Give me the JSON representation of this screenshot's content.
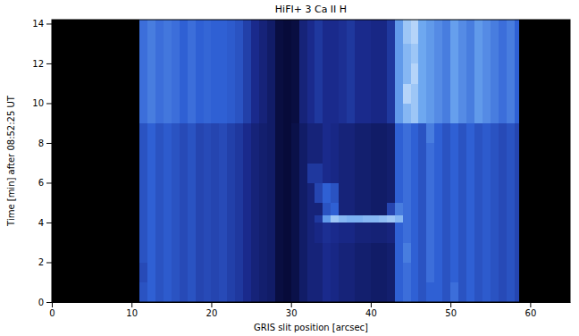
{
  "chart_data": {
    "type": "heatmap",
    "title": "HiFI+ 3 Ca II H",
    "x_label": "GRIS slit position [arcsec]",
    "y_label": "Time [min] after 08:52:25 UT",
    "xlim": [
      0,
      65
    ],
    "ylim": [
      0,
      14.2
    ],
    "xticks": [
      0,
      10,
      20,
      30,
      40,
      50,
      60
    ],
    "yticks": [
      0,
      2,
      4,
      6,
      8,
      10,
      12,
      14
    ],
    "zlim": [
      0,
      1
    ],
    "x_edges": [
      11,
      12,
      13,
      14,
      15,
      16,
      17,
      18,
      19,
      20,
      21,
      22,
      23,
      24,
      25,
      26,
      27,
      28,
      29,
      30,
      31,
      32,
      33,
      34,
      35,
      36,
      37,
      38,
      39,
      40,
      41,
      42,
      43,
      44,
      45,
      46,
      47,
      48,
      49,
      50,
      51,
      52,
      53,
      54,
      55,
      56,
      57,
      58,
      58.5
    ],
    "y_edges": [
      0,
      1,
      2,
      3,
      4,
      4.4,
      5,
      6,
      7,
      8,
      9,
      10,
      11,
      12,
      13,
      14.2
    ],
    "cells": [
      [
        0.45,
        0.5,
        0.45,
        0.48,
        0.45,
        0.42,
        0.45,
        0.4,
        0.42,
        0.4,
        0.42,
        0.38,
        0.35,
        0.3,
        0.25,
        0.22,
        0.2,
        0.1,
        0.08,
        0.12,
        0.2,
        0.25,
        0.25,
        0.3,
        0.28,
        0.25,
        0.25,
        0.22,
        0.22,
        0.2,
        0.2,
        0.22,
        0.5,
        0.55,
        0.5,
        0.45,
        0.5,
        0.5,
        0.45,
        0.55,
        0.45,
        0.5,
        0.45,
        0.48,
        0.45,
        0.42,
        0.45,
        0.4
      ],
      [
        0.42,
        0.5,
        0.45,
        0.48,
        0.45,
        0.42,
        0.45,
        0.4,
        0.42,
        0.4,
        0.42,
        0.38,
        0.35,
        0.3,
        0.25,
        0.22,
        0.2,
        0.1,
        0.08,
        0.12,
        0.2,
        0.25,
        0.25,
        0.3,
        0.28,
        0.25,
        0.25,
        0.22,
        0.22,
        0.2,
        0.2,
        0.22,
        0.5,
        0.55,
        0.5,
        0.45,
        0.55,
        0.5,
        0.45,
        0.5,
        0.45,
        0.5,
        0.45,
        0.48,
        0.45,
        0.42,
        0.45,
        0.4
      ],
      [
        0.45,
        0.5,
        0.45,
        0.48,
        0.45,
        0.42,
        0.45,
        0.4,
        0.42,
        0.4,
        0.42,
        0.38,
        0.35,
        0.3,
        0.25,
        0.22,
        0.2,
        0.1,
        0.08,
        0.12,
        0.2,
        0.25,
        0.25,
        0.3,
        0.28,
        0.25,
        0.25,
        0.22,
        0.22,
        0.2,
        0.2,
        0.22,
        0.5,
        0.6,
        0.5,
        0.45,
        0.55,
        0.5,
        0.45,
        0.5,
        0.45,
        0.5,
        0.45,
        0.48,
        0.45,
        0.42,
        0.45,
        0.4
      ],
      [
        0.45,
        0.5,
        0.45,
        0.48,
        0.45,
        0.42,
        0.45,
        0.4,
        0.42,
        0.4,
        0.42,
        0.38,
        0.35,
        0.3,
        0.25,
        0.22,
        0.2,
        0.1,
        0.08,
        0.12,
        0.2,
        0.25,
        0.28,
        0.32,
        0.3,
        0.28,
        0.28,
        0.25,
        0.25,
        0.24,
        0.24,
        0.26,
        0.5,
        0.55,
        0.5,
        0.45,
        0.55,
        0.5,
        0.45,
        0.5,
        0.45,
        0.5,
        0.45,
        0.48,
        0.45,
        0.42,
        0.45,
        0.4
      ],
      [
        0.45,
        0.5,
        0.45,
        0.48,
        0.45,
        0.42,
        0.45,
        0.4,
        0.42,
        0.4,
        0.42,
        0.38,
        0.35,
        0.3,
        0.25,
        0.22,
        0.2,
        0.1,
        0.08,
        0.12,
        0.2,
        0.25,
        0.35,
        0.7,
        0.85,
        0.8,
        0.78,
        0.78,
        0.8,
        0.8,
        0.82,
        0.85,
        0.8,
        0.55,
        0.5,
        0.45,
        0.55,
        0.5,
        0.45,
        0.5,
        0.45,
        0.5,
        0.45,
        0.48,
        0.45,
        0.42,
        0.45,
        0.4
      ],
      [
        0.45,
        0.5,
        0.45,
        0.48,
        0.45,
        0.42,
        0.45,
        0.4,
        0.42,
        0.4,
        0.42,
        0.38,
        0.35,
        0.3,
        0.25,
        0.22,
        0.2,
        0.1,
        0.08,
        0.12,
        0.2,
        0.25,
        0.25,
        0.45,
        0.5,
        0.25,
        0.25,
        0.22,
        0.22,
        0.2,
        0.2,
        0.4,
        0.6,
        0.55,
        0.5,
        0.45,
        0.55,
        0.5,
        0.45,
        0.5,
        0.45,
        0.5,
        0.45,
        0.48,
        0.45,
        0.42,
        0.45,
        0.4
      ],
      [
        0.45,
        0.5,
        0.45,
        0.48,
        0.45,
        0.42,
        0.45,
        0.4,
        0.42,
        0.4,
        0.42,
        0.38,
        0.35,
        0.3,
        0.25,
        0.22,
        0.2,
        0.1,
        0.08,
        0.12,
        0.2,
        0.25,
        0.4,
        0.5,
        0.45,
        0.25,
        0.25,
        0.22,
        0.22,
        0.2,
        0.2,
        0.22,
        0.5,
        0.55,
        0.5,
        0.45,
        0.55,
        0.5,
        0.45,
        0.5,
        0.45,
        0.5,
        0.45,
        0.48,
        0.45,
        0.42,
        0.45,
        0.4
      ],
      [
        0.45,
        0.5,
        0.45,
        0.48,
        0.45,
        0.42,
        0.45,
        0.4,
        0.42,
        0.4,
        0.42,
        0.38,
        0.35,
        0.3,
        0.25,
        0.22,
        0.2,
        0.1,
        0.08,
        0.12,
        0.2,
        0.35,
        0.35,
        0.3,
        0.28,
        0.25,
        0.25,
        0.22,
        0.22,
        0.2,
        0.2,
        0.22,
        0.5,
        0.55,
        0.5,
        0.45,
        0.55,
        0.5,
        0.45,
        0.5,
        0.45,
        0.5,
        0.45,
        0.48,
        0.45,
        0.42,
        0.45,
        0.4
      ],
      [
        0.45,
        0.5,
        0.45,
        0.48,
        0.45,
        0.42,
        0.45,
        0.4,
        0.42,
        0.4,
        0.42,
        0.38,
        0.35,
        0.3,
        0.25,
        0.22,
        0.2,
        0.1,
        0.08,
        0.12,
        0.2,
        0.25,
        0.25,
        0.3,
        0.28,
        0.25,
        0.25,
        0.22,
        0.22,
        0.2,
        0.2,
        0.22,
        0.5,
        0.55,
        0.5,
        0.45,
        0.55,
        0.5,
        0.45,
        0.5,
        0.45,
        0.5,
        0.45,
        0.48,
        0.45,
        0.42,
        0.45,
        0.4
      ],
      [
        0.45,
        0.5,
        0.45,
        0.48,
        0.45,
        0.42,
        0.45,
        0.4,
        0.42,
        0.4,
        0.42,
        0.38,
        0.35,
        0.3,
        0.25,
        0.22,
        0.2,
        0.1,
        0.08,
        0.12,
        0.2,
        0.25,
        0.25,
        0.3,
        0.28,
        0.25,
        0.25,
        0.22,
        0.22,
        0.2,
        0.2,
        0.22,
        0.5,
        0.55,
        0.5,
        0.45,
        0.6,
        0.5,
        0.45,
        0.5,
        0.45,
        0.5,
        0.45,
        0.48,
        0.45,
        0.42,
        0.45,
        0.4
      ],
      [
        0.55,
        0.6,
        0.55,
        0.58,
        0.55,
        0.5,
        0.55,
        0.5,
        0.52,
        0.5,
        0.5,
        0.48,
        0.45,
        0.38,
        0.3,
        0.25,
        0.2,
        0.1,
        0.08,
        0.1,
        0.25,
        0.3,
        0.35,
        0.3,
        0.3,
        0.32,
        0.35,
        0.3,
        0.3,
        0.28,
        0.28,
        0.35,
        0.7,
        0.8,
        0.85,
        0.75,
        0.7,
        0.65,
        0.6,
        0.72,
        0.65,
        0.6,
        0.7,
        0.65,
        0.6,
        0.55,
        0.6,
        0.5
      ],
      [
        0.55,
        0.6,
        0.55,
        0.58,
        0.55,
        0.5,
        0.55,
        0.5,
        0.52,
        0.5,
        0.5,
        0.48,
        0.45,
        0.38,
        0.3,
        0.25,
        0.2,
        0.1,
        0.08,
        0.1,
        0.25,
        0.3,
        0.35,
        0.3,
        0.3,
        0.32,
        0.35,
        0.3,
        0.3,
        0.28,
        0.28,
        0.35,
        0.7,
        0.9,
        0.85,
        0.75,
        0.7,
        0.65,
        0.6,
        0.72,
        0.65,
        0.6,
        0.7,
        0.65,
        0.6,
        0.55,
        0.6,
        0.5
      ],
      [
        0.55,
        0.6,
        0.55,
        0.58,
        0.55,
        0.5,
        0.55,
        0.5,
        0.52,
        0.5,
        0.5,
        0.48,
        0.45,
        0.38,
        0.3,
        0.25,
        0.2,
        0.1,
        0.08,
        0.1,
        0.25,
        0.3,
        0.35,
        0.3,
        0.3,
        0.32,
        0.35,
        0.3,
        0.3,
        0.28,
        0.28,
        0.35,
        0.7,
        0.8,
        0.9,
        0.75,
        0.7,
        0.65,
        0.6,
        0.72,
        0.65,
        0.6,
        0.7,
        0.65,
        0.6,
        0.55,
        0.6,
        0.5
      ],
      [
        0.55,
        0.6,
        0.55,
        0.58,
        0.55,
        0.5,
        0.55,
        0.5,
        0.52,
        0.5,
        0.5,
        0.48,
        0.45,
        0.38,
        0.3,
        0.25,
        0.2,
        0.1,
        0.08,
        0.1,
        0.25,
        0.3,
        0.35,
        0.3,
        0.3,
        0.32,
        0.35,
        0.3,
        0.3,
        0.28,
        0.28,
        0.35,
        0.7,
        0.8,
        0.85,
        0.75,
        0.7,
        0.65,
        0.6,
        0.72,
        0.65,
        0.6,
        0.7,
        0.65,
        0.6,
        0.55,
        0.6,
        0.5
      ],
      [
        0.55,
        0.6,
        0.55,
        0.58,
        0.55,
        0.5,
        0.55,
        0.5,
        0.52,
        0.5,
        0.5,
        0.48,
        0.45,
        0.38,
        0.3,
        0.25,
        0.2,
        0.1,
        0.08,
        0.1,
        0.25,
        0.3,
        0.35,
        0.3,
        0.3,
        0.32,
        0.35,
        0.3,
        0.3,
        0.28,
        0.28,
        0.35,
        0.7,
        0.85,
        0.9,
        0.75,
        0.7,
        0.65,
        0.6,
        0.72,
        0.65,
        0.6,
        0.7,
        0.65,
        0.6,
        0.55,
        0.6,
        0.5
      ]
    ]
  }
}
